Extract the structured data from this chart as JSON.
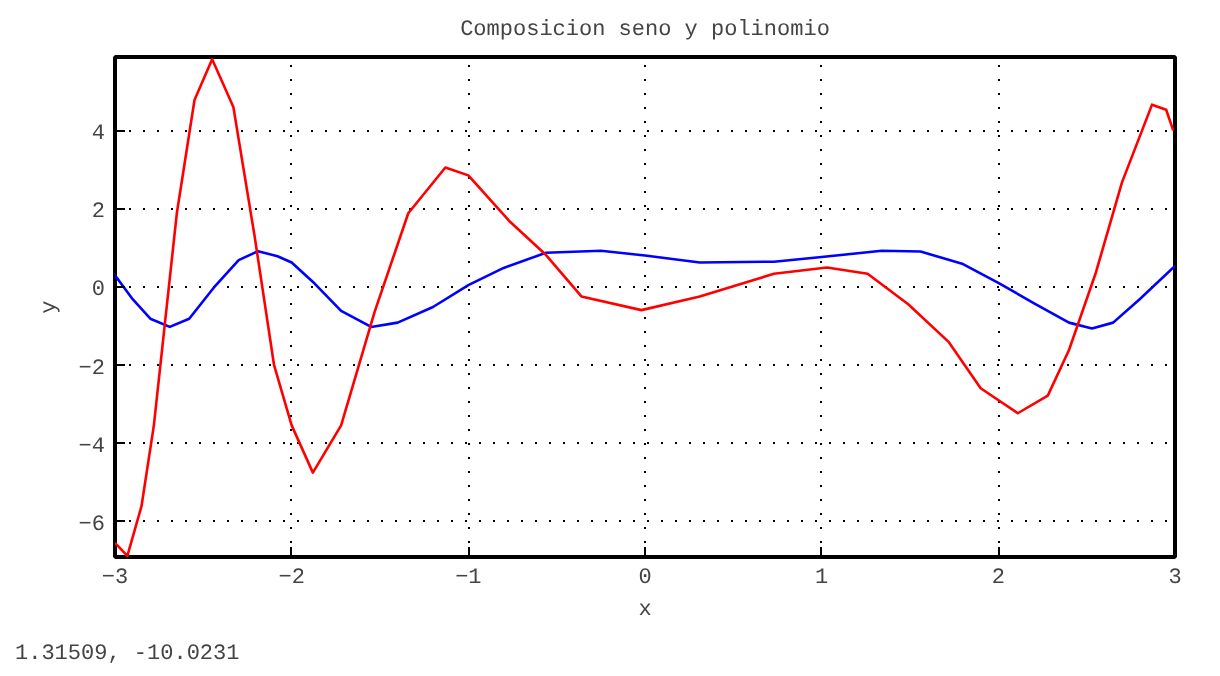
{
  "chart_data": {
    "type": "line",
    "title": "Composicion seno y polinomio",
    "xlabel": "x",
    "ylabel": "y",
    "xlim": [
      -3,
      3
    ],
    "ylim": [
      -6.9,
      5.9
    ],
    "xticks": [
      -3,
      -2,
      -1,
      0,
      1,
      2,
      3
    ],
    "yticks": [
      -6,
      -4,
      -2,
      0,
      2,
      4
    ],
    "grid": true,
    "line_style": "solid",
    "annotations": [
      "1.31509, -10.0231"
    ],
    "series": [
      {
        "color": "#0000ff",
        "x": [
          -3,
          -2.9,
          -2.8,
          -2.69,
          -2.58,
          -2.44,
          -2.3,
          -2.19,
          -2.08,
          -2,
          -1.87,
          -1.72,
          -1.55,
          -1.4,
          -1.2,
          -1.0,
          -0.8,
          -0.56,
          -0.25,
          0,
          0.31,
          0.73,
          1.0,
          1.34,
          1.56,
          1.8,
          2.0,
          2.2,
          2.4,
          2.53,
          2.65,
          2.8,
          3.0
        ],
        "values": [
          0.31,
          -0.3,
          -0.8,
          -1.01,
          -0.8,
          0.0,
          0.7,
          0.93,
          0.8,
          0.64,
          0.1,
          -0.6,
          -1.01,
          -0.9,
          -0.5,
          0.06,
          0.5,
          0.89,
          0.94,
          0.82,
          0.64,
          0.66,
          0.78,
          0.94,
          0.92,
          0.6,
          0.12,
          -0.4,
          -0.9,
          -1.05,
          -0.9,
          -0.3,
          0.55
        ]
      },
      {
        "color": "#ff0000",
        "x": [
          -3,
          -2.93,
          -2.85,
          -2.78,
          -2.65,
          -2.55,
          -2.45,
          -2.33,
          -2.21,
          -2.1,
          -2,
          -1.88,
          -1.72,
          -1.53,
          -1.34,
          -1.13,
          -1.0,
          -0.77,
          -0.56,
          -0.36,
          -0.02,
          0.31,
          0.73,
          1.03,
          1.26,
          1.49,
          1.72,
          1.9,
          2.11,
          2.28,
          2.4,
          2.55,
          2.7,
          2.87,
          2.95,
          2.99
        ],
        "values": [
          -6.54,
          -6.87,
          -5.6,
          -3.53,
          1.9,
          4.8,
          5.84,
          4.62,
          1.32,
          -1.98,
          -3.53,
          -4.74,
          -3.53,
          -0.62,
          1.9,
          3.07,
          2.87,
          1.71,
          0.83,
          -0.23,
          -0.58,
          -0.23,
          0.35,
          0.51,
          0.35,
          -0.43,
          -1.4,
          -2.58,
          -3.22,
          -2.77,
          -1.6,
          0.35,
          2.69,
          4.68,
          4.55,
          4.02
        ]
      }
    ]
  }
}
